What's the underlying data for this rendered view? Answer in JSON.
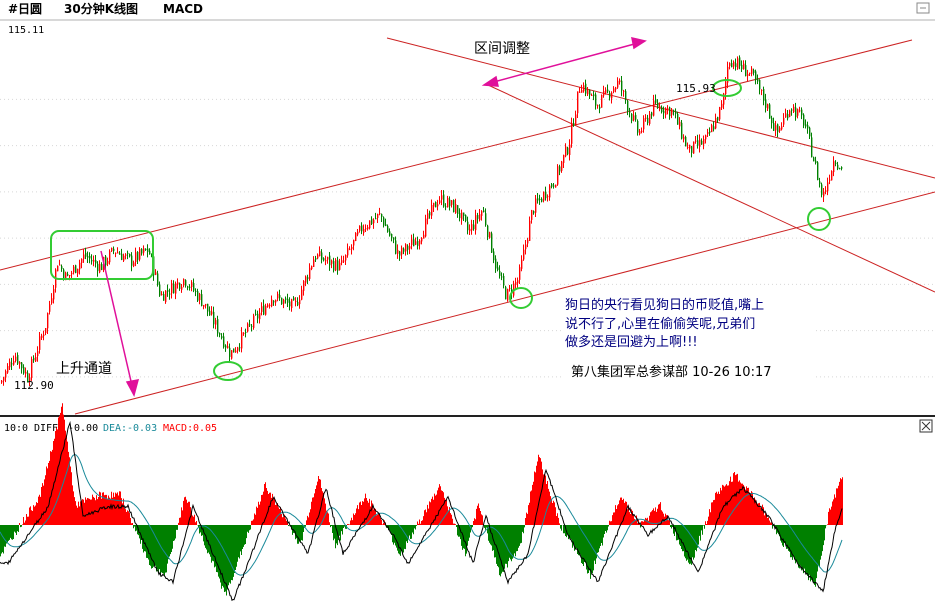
{
  "header": {
    "symbol": "#日圆",
    "period": "30分钟K线图",
    "indicator": "MACD"
  },
  "colors": {
    "up": "#ff0000",
    "down": "#008000",
    "channel": "#cc2222",
    "marker": "#33cc33",
    "arrow": "#e0109a",
    "text": "#000000",
    "annotation": "#000080",
    "diff": "#000000",
    "dea": "#1a8a9a",
    "macd": "#ff0000"
  },
  "annotations": {
    "high_label": "115.93",
    "low_label": "112.90",
    "axis_top_label": "115.11",
    "range_label": "区间调整",
    "channel_label": "上升通道",
    "comment_line1": "狗日的央行看见狗日的币贬值,嘴上",
    "comment_line2": "说不行了,心里在偷偷笑呢,兄弟们",
    "comment_line3": "做多还是回避为上啊!!!",
    "signature": "第八集团军总参谋部 10-26 10:17"
  },
  "macd_header": {
    "params": "10:0",
    "diff_label": "DIFF:",
    "diff_value": "-0.00",
    "dea_label": "DEA:",
    "dea_value": "-0.03",
    "macd_label": "MACD:",
    "macd_value": "0.05"
  },
  "chart_data": {
    "type": "candlestick",
    "price_anchors": [
      [
        0,
        112.95
      ],
      [
        14,
        113.2
      ],
      [
        27,
        113.0
      ],
      [
        45,
        113.45
      ],
      [
        57,
        114.0
      ],
      [
        66,
        113.85
      ],
      [
        84,
        114.05
      ],
      [
        100,
        113.95
      ],
      [
        114,
        114.1
      ],
      [
        130,
        114.0
      ],
      [
        148,
        114.1
      ],
      [
        160,
        113.7
      ],
      [
        184,
        113.85
      ],
      [
        202,
        113.65
      ],
      [
        218,
        113.4
      ],
      [
        230,
        113.2
      ],
      [
        255,
        113.5
      ],
      [
        272,
        113.7
      ],
      [
        294,
        113.6
      ],
      [
        314,
        114.05
      ],
      [
        340,
        113.95
      ],
      [
        362,
        114.3
      ],
      [
        380,
        114.4
      ],
      [
        398,
        114.05
      ],
      [
        418,
        114.2
      ],
      [
        438,
        114.55
      ],
      [
        456,
        114.45
      ],
      [
        468,
        114.25
      ],
      [
        482,
        114.45
      ],
      [
        497,
        113.9
      ],
      [
        506,
        113.7
      ],
      [
        518,
        113.85
      ],
      [
        532,
        114.45
      ],
      [
        554,
        114.7
      ],
      [
        568,
        115.0
      ],
      [
        580,
        115.55
      ],
      [
        596,
        115.35
      ],
      [
        618,
        115.55
      ],
      [
        638,
        115.1
      ],
      [
        654,
        115.35
      ],
      [
        672,
        115.3
      ],
      [
        688,
        114.95
      ],
      [
        706,
        115.05
      ],
      [
        722,
        115.35
      ],
      [
        728,
        115.75
      ],
      [
        738,
        115.7
      ],
      [
        752,
        115.6
      ],
      [
        766,
        115.35
      ],
      [
        776,
        115.1
      ],
      [
        790,
        115.35
      ],
      [
        804,
        115.2
      ],
      [
        814,
        114.85
      ],
      [
        822,
        114.55
      ],
      [
        834,
        114.9
      ],
      [
        841,
        114.8
      ]
    ],
    "price_range": [
      112.8,
      116.0
    ],
    "channels": [
      {
        "name": "upper",
        "from": [
          0,
          270
        ],
        "to": [
          912,
          40
        ]
      },
      {
        "name": "lower",
        "from": [
          75,
          414
        ],
        "to": [
          935,
          192
        ]
      },
      {
        "name": "range-top",
        "from": [
          387,
          38
        ],
        "to": [
          935,
          178
        ]
      },
      {
        "name": "range-bottom",
        "from": [
          488,
          85
        ],
        "to": [
          935,
          292
        ]
      }
    ],
    "macd_anchors": [
      [
        0,
        -0.03
      ],
      [
        40,
        0.03
      ],
      [
        62,
        0.12
      ],
      [
        75,
        0.02
      ],
      [
        100,
        0.03
      ],
      [
        120,
        0.03
      ],
      [
        150,
        -0.04
      ],
      [
        165,
        -0.05
      ],
      [
        185,
        0.03
      ],
      [
        225,
        -0.07
      ],
      [
        240,
        -0.03
      ],
      [
        265,
        0.04
      ],
      [
        300,
        -0.02
      ],
      [
        318,
        0.05
      ],
      [
        335,
        -0.02
      ],
      [
        365,
        0.03
      ],
      [
        385,
        0.0
      ],
      [
        400,
        -0.03
      ],
      [
        440,
        0.04
      ],
      [
        465,
        -0.03
      ],
      [
        478,
        0.02
      ],
      [
        500,
        -0.05
      ],
      [
        520,
        -0.02
      ],
      [
        538,
        0.07
      ],
      [
        560,
        0.0
      ],
      [
        590,
        -0.05
      ],
      [
        620,
        0.03
      ],
      [
        640,
        0.0
      ],
      [
        660,
        0.02
      ],
      [
        690,
        -0.04
      ],
      [
        715,
        0.03
      ],
      [
        735,
        0.05
      ],
      [
        760,
        0.02
      ],
      [
        790,
        -0.03
      ],
      [
        815,
        -0.06
      ],
      [
        828,
        0.01
      ],
      [
        842,
        0.05
      ]
    ],
    "macd_range": [
      -0.08,
      0.08
    ]
  }
}
